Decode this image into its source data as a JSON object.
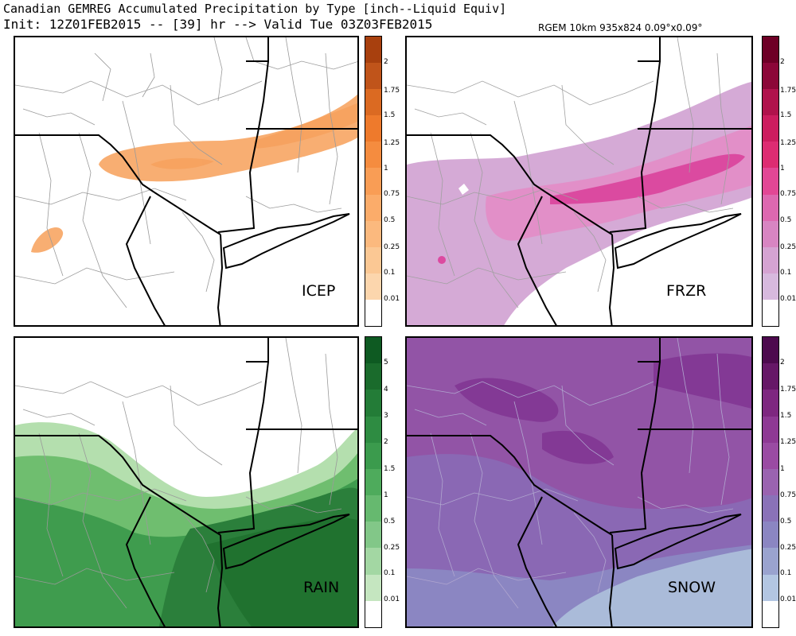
{
  "header": {
    "title": "Canadian GEMREG Accumulated Precipitation by Type [inch--Liquid Equiv]",
    "subtitle": "Init: 12Z01FEB2015 -- [39] hr --> Valid Tue 03Z03FEB2015",
    "model_info": "RGEM 10km 935x824 0.09°x0.09°"
  },
  "panels": [
    {
      "id": "icep",
      "label": "ICEP",
      "scale_labels": [
        "2",
        "1.75",
        "1.5",
        "1.25",
        "1",
        "0.75",
        "0.5",
        "0.25",
        "0.1",
        "0.01"
      ],
      "scale_colors": [
        "#a8400e",
        "#c0541a",
        "#db6a22",
        "#ee7a2c",
        "#f58c3f",
        "#f99d55",
        "#fbac6a",
        "#fbb97e",
        "#fbc894",
        "#fcd6ad"
      ],
      "field_color": "#f8ae72"
    },
    {
      "id": "frzr",
      "label": "FRZR",
      "scale_labels": [
        "2",
        "1.75",
        "1.5",
        "1.25",
        "1",
        "0.75",
        "0.5",
        "0.25",
        "0.1",
        "0.01"
      ],
      "scale_colors": [
        "#6e0026",
        "#8c0738",
        "#b0124c",
        "#cc1d5f",
        "#dd2c72",
        "#e24795",
        "#dd68b0",
        "#d885c2",
        "#d5a3d2",
        "#d7b9de"
      ],
      "field_color": "#d0a4d4"
    },
    {
      "id": "rain",
      "label": "RAIN",
      "scale_labels": [
        "5",
        "4",
        "3",
        "2",
        "1.5",
        "1",
        "0.5",
        "0.25",
        "0.1",
        "0.01"
      ],
      "scale_colors": [
        "#0e5a22",
        "#1a6b2c",
        "#237c37",
        "#2e8c42",
        "#3b9b4d",
        "#4eab5c",
        "#66b96f",
        "#82c788",
        "#a3d7a3",
        "#c5e6c0"
      ],
      "field_color": "#3f9c4e"
    },
    {
      "id": "snow",
      "label": "SNOW",
      "scale_labels": [
        "2",
        "1.75",
        "1.5",
        "1.25",
        "1",
        "0.75",
        "0.5",
        "0.25",
        "0.1",
        "0.01"
      ],
      "scale_colors": [
        "#4d0a4e",
        "#661767",
        "#7e2780",
        "#8e3994",
        "#9a4ba3",
        "#9a63b0",
        "#8a72b8",
        "#8b86c2",
        "#9aa3cf",
        "#b3c6e2"
      ],
      "field_color": "#8a55a8"
    }
  ]
}
